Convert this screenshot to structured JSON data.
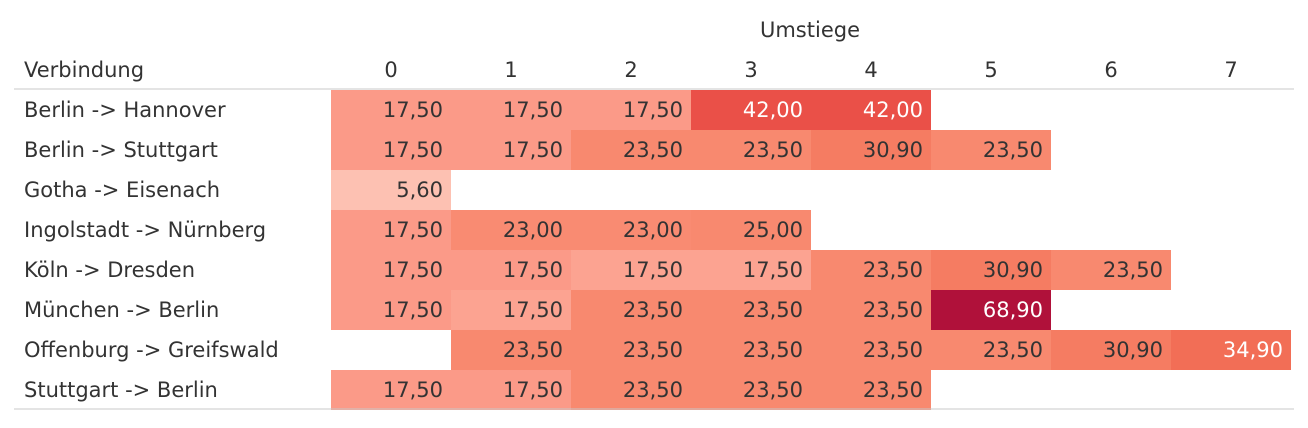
{
  "chart_data": {
    "type": "heatmap",
    "column_group_label": "Umstiege",
    "row_header": "Verbindung",
    "columns": [
      "0",
      "1",
      "2",
      "3",
      "4",
      "5",
      "6",
      "7"
    ],
    "rows": [
      {
        "label": "Berlin -> Hannover",
        "values": [
          17.5,
          17.5,
          17.5,
          42.0,
          42.0,
          null,
          null,
          null
        ],
        "text": [
          "17,50",
          "17,50",
          "17,50",
          "42,00",
          "42,00",
          "",
          "",
          ""
        ],
        "colors": [
          "#fb9a88",
          "#fb9a88",
          "#fb9a88",
          "#ea5048",
          "#ea5048",
          null,
          null,
          null
        ]
      },
      {
        "label": "Berlin -> Stuttgart",
        "values": [
          17.5,
          17.5,
          23.5,
          23.5,
          30.9,
          23.5,
          null,
          null
        ],
        "text": [
          "17,50",
          "17,50",
          "23,50",
          "23,50",
          "30,90",
          "23,50",
          "",
          ""
        ],
        "colors": [
          "#fb9a88",
          "#fb9a88",
          "#f8896f",
          "#f8896f",
          "#f57c62",
          "#f8896f",
          null,
          null
        ]
      },
      {
        "label": "Gotha -> Eisenach",
        "values": [
          5.6,
          null,
          null,
          null,
          null,
          null,
          null,
          null
        ],
        "text": [
          "5,60",
          "",
          "",
          "",
          "",
          "",
          "",
          ""
        ],
        "colors": [
          "#fdc1b2",
          null,
          null,
          null,
          null,
          null,
          null,
          null
        ]
      },
      {
        "label": "Ingolstadt -> Nürnberg",
        "values": [
          17.5,
          23.0,
          23.0,
          25.0,
          null,
          null,
          null,
          null
        ],
        "text": [
          "17,50",
          "23,00",
          "23,00",
          "25,00",
          "",
          "",
          "",
          ""
        ],
        "colors": [
          "#fb9a88",
          "#f98b72",
          "#f98b72",
          "#f8896f",
          null,
          null,
          null,
          null
        ]
      },
      {
        "label": "Köln -> Dresden",
        "values": [
          17.5,
          17.5,
          17.5,
          17.5,
          23.5,
          30.9,
          23.5,
          null
        ],
        "text": [
          "17,50",
          "17,50",
          "17,50",
          "17,50",
          "23,50",
          "30,90",
          "23,50",
          ""
        ],
        "colors": [
          "#fb9a88",
          "#fb9a88",
          "#fca391",
          "#fca391",
          "#f8896f",
          "#f57c62",
          "#f8896f",
          null
        ]
      },
      {
        "label": "München -> Berlin",
        "values": [
          17.5,
          17.5,
          23.5,
          23.5,
          23.5,
          68.9,
          null,
          null
        ],
        "text": [
          "17,50",
          "17,50",
          "23,50",
          "23,50",
          "23,50",
          "68,90",
          "",
          ""
        ],
        "colors": [
          "#fb9a88",
          "#fca391",
          "#f8896f",
          "#f8896f",
          "#f8896f",
          "#b0113a",
          null,
          null
        ]
      },
      {
        "label": "Offenburg -> Greifswald",
        "values": [
          null,
          23.5,
          23.5,
          23.5,
          23.5,
          23.5,
          30.9,
          34.9
        ],
        "text": [
          "",
          "23,50",
          "23,50",
          "23,50",
          "23,50",
          "23,50",
          "30,90",
          "34,90"
        ],
        "colors": [
          null,
          "#f8896f",
          "#f8896f",
          "#f8896f",
          "#f8896f",
          "#f8896f",
          "#f57c62",
          "#f26e56"
        ]
      },
      {
        "label": "Stuttgart -> Berlin",
        "values": [
          17.5,
          17.5,
          23.5,
          23.5,
          23.5,
          null,
          null,
          null
        ],
        "text": [
          "17,50",
          "17,50",
          "23,50",
          "23,50",
          "23,50",
          "",
          "",
          ""
        ],
        "colors": [
          "#fb9a88",
          "#fb9a88",
          "#f8896f",
          "#f8896f",
          "#f8896f",
          null,
          null,
          null
        ]
      }
    ],
    "light_text_threshold": 34,
    "text_color_dark": "#333333",
    "text_color_light": "#ffffff",
    "grid": false,
    "legend": "none"
  }
}
